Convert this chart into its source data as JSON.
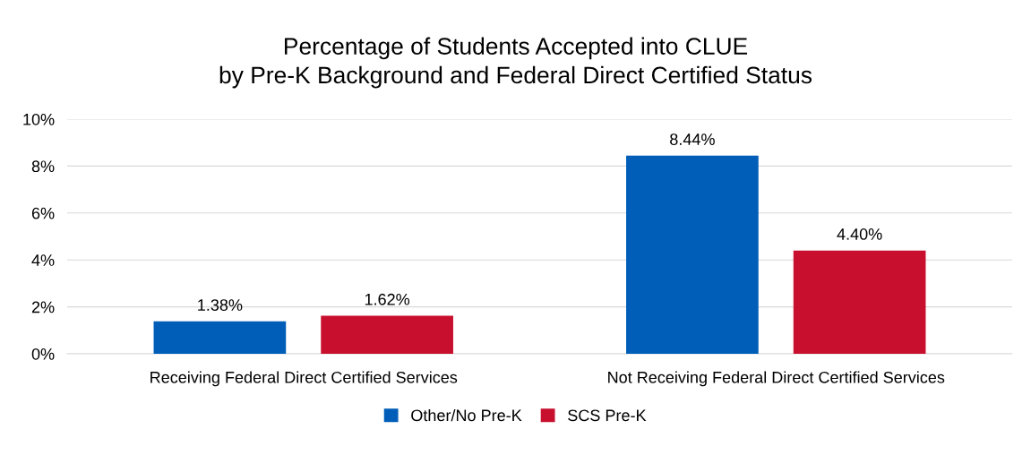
{
  "chart_data": {
    "type": "bar",
    "title": "Percentage of Students Accepted into CLUE\nby Pre-K Background and Federal Direct Certified Status",
    "categories": [
      "Receiving Federal Direct Certified Services",
      "Not Receiving Federal Direct Certified Services"
    ],
    "series": [
      {
        "name": "Other/No Pre-K",
        "color": "#005eb8",
        "values": [
          1.38,
          8.44
        ],
        "value_labels": [
          "1.38%",
          "8.44%"
        ]
      },
      {
        "name": "SCS Pre-K",
        "color": "#c8102e",
        "values": [
          1.62,
          4.4
        ],
        "value_labels": [
          "1.62%",
          "4.40%"
        ]
      }
    ],
    "ylim": [
      0,
      10
    ],
    "yticks": [
      {
        "value": 0,
        "label": "0%"
      },
      {
        "value": 2,
        "label": "2%"
      },
      {
        "value": 4,
        "label": "4%"
      },
      {
        "value": 6,
        "label": "6%"
      },
      {
        "value": 8,
        "label": "8%"
      },
      {
        "value": 10,
        "label": "10%"
      }
    ],
    "grid": "y",
    "legend": "bottom"
  }
}
